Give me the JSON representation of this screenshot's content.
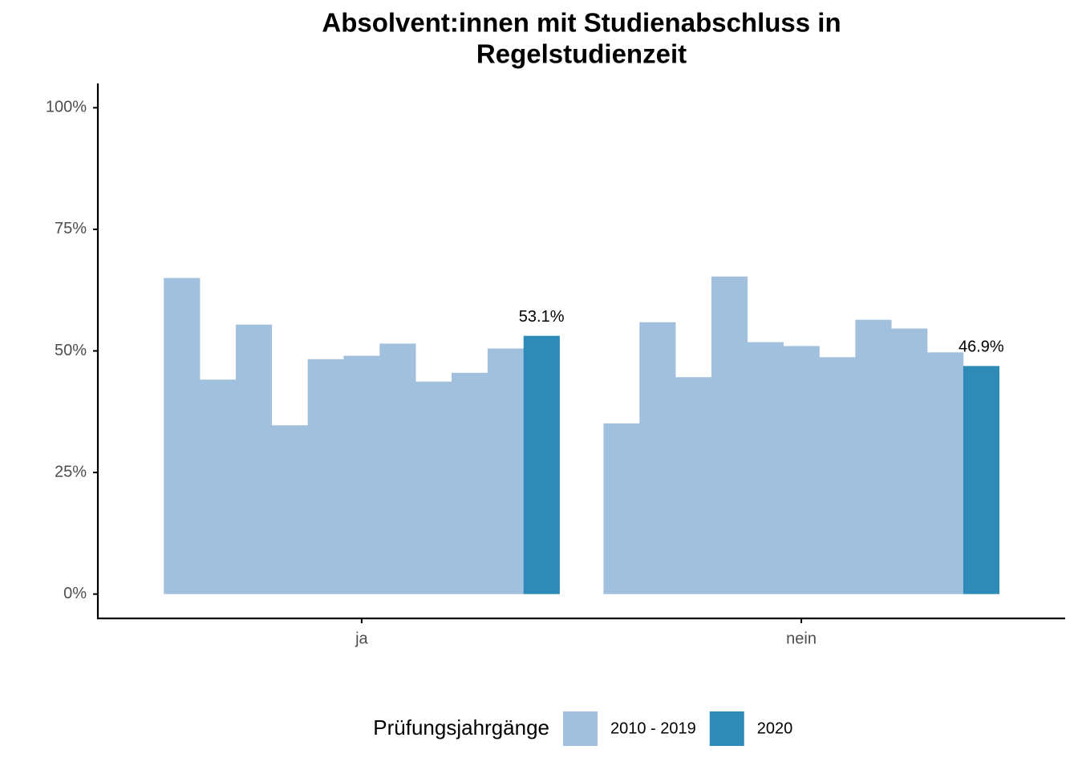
{
  "chart_data": {
    "type": "bar",
    "title": [
      "Absolvent:innen mit Studienabschluss in",
      "Regelstudienzeit"
    ],
    "categories": [
      "ja",
      "nein"
    ],
    "legend_title": "Prüfungsjahrgänge",
    "legend_position": "bottom",
    "series": [
      {
        "name": "2010 - 2019",
        "color": "#a1c0dd",
        "values": [
          [
            65.0,
            44.1,
            55.4,
            34.7,
            48.3,
            49.0,
            51.5,
            43.7,
            45.5,
            50.5
          ],
          [
            35.1,
            55.9,
            44.6,
            65.3,
            51.8,
            51.0,
            48.7,
            56.4,
            54.6,
            49.7
          ]
        ]
      },
      {
        "name": "2020",
        "color": "#2e8bb8",
        "values": [
          53.1,
          46.9
        ],
        "value_labels": [
          "53.1%",
          "46.9%"
        ]
      }
    ],
    "ylim": [
      -5,
      105
    ],
    "yticks": [
      {
        "value": 0,
        "label": "0%"
      },
      {
        "value": 25,
        "label": "25%"
      },
      {
        "value": 50,
        "label": "50%"
      },
      {
        "value": 75,
        "label": "75%"
      },
      {
        "value": 100,
        "label": "100%"
      }
    ],
    "grid": false
  }
}
